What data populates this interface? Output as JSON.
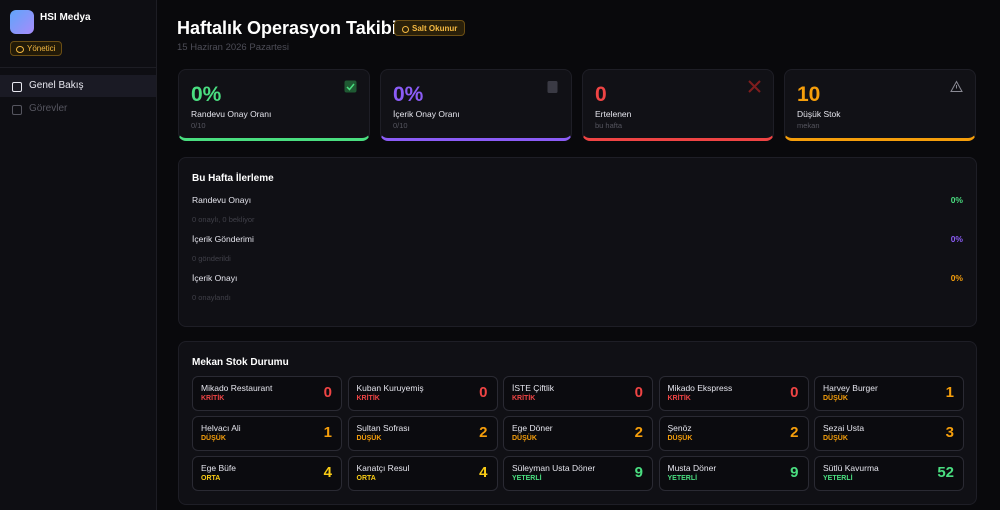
{
  "sidebar": {
    "brand": "HSI Medya",
    "role": "Yönetici",
    "nav": [
      "Genel Bakış",
      "Görevler"
    ]
  },
  "header": {
    "title": "Haftalık Operasyon Takibi",
    "badge": "Salt Okunur",
    "date": "15 Haziran 2026 Pazartesi"
  },
  "stats": [
    {
      "value": "0%",
      "label": "Randevu Onay Oranı",
      "sub": "0/10",
      "color": "#4ade80"
    },
    {
      "value": "0%",
      "label": "İçerik Onay Oranı",
      "sub": "0/10",
      "color": "#8b5cf6"
    },
    {
      "value": "0",
      "label": "Ertelenen",
      "sub": "bu hafta",
      "color": "#ef4444"
    },
    {
      "value": "10",
      "label": "Düşük Stok",
      "sub": "mekan",
      "color": "#f59e0b"
    }
  ],
  "progress": {
    "title": "Bu Hafta İlerleme",
    "rows": [
      {
        "label": "Randevu Onayı",
        "percent": "0%",
        "note": "0 onaylı, 0 bekliyor",
        "color": "#4ade80"
      },
      {
        "label": "İçerik Gönderimi",
        "percent": "0%",
        "note": "0 gönderildi",
        "color": "#8b5cf6"
      },
      {
        "label": "İçerik Onayı",
        "percent": "0%",
        "note": "0 onaylandı",
        "color": "#f59e0b"
      }
    ]
  },
  "stock": {
    "title": "Mekan Stok Durumu",
    "items": [
      {
        "name": "Mikado Restaurant",
        "status": "KRİTİK",
        "count": 0,
        "color": "#ef4444"
      },
      {
        "name": "Kuban Kuruyemiş",
        "status": "KRİTİK",
        "count": 0,
        "color": "#ef4444"
      },
      {
        "name": "İSTE Çiftlik",
        "status": "KRİTİK",
        "count": 0,
        "color": "#ef4444"
      },
      {
        "name": "Mikado Ekspress",
        "status": "KRİTİK",
        "count": 0,
        "color": "#ef4444"
      },
      {
        "name": "Harvey Burger",
        "status": "DÜŞÜK",
        "count": 1,
        "color": "#f59e0b"
      },
      {
        "name": "Helvacı Ali",
        "status": "DÜŞÜK",
        "count": 1,
        "color": "#f59e0b"
      },
      {
        "name": "Sultan Sofrası",
        "status": "DÜŞÜK",
        "count": 2,
        "color": "#f59e0b"
      },
      {
        "name": "Ege Döner",
        "status": "DÜŞÜK",
        "count": 2,
        "color": "#f59e0b"
      },
      {
        "name": "Şenöz",
        "status": "DÜŞÜK",
        "count": 2,
        "color": "#f59e0b"
      },
      {
        "name": "Sezai Usta",
        "status": "DÜŞÜK",
        "count": 3,
        "color": "#f59e0b"
      },
      {
        "name": "Ege Büfe",
        "status": "ORTA",
        "count": 4,
        "color": "#facc15"
      },
      {
        "name": "Kanatçı Resul",
        "status": "ORTA",
        "count": 4,
        "color": "#facc15"
      },
      {
        "name": "Süleyman Usta Döner",
        "status": "YETERLİ",
        "count": 9,
        "color": "#4ade80"
      },
      {
        "name": "Musta Döner",
        "status": "YETERLİ",
        "count": 9,
        "color": "#4ade80"
      },
      {
        "name": "Sütlü Kavurma",
        "status": "YETERLİ",
        "count": 52,
        "color": "#4ade80"
      }
    ]
  }
}
